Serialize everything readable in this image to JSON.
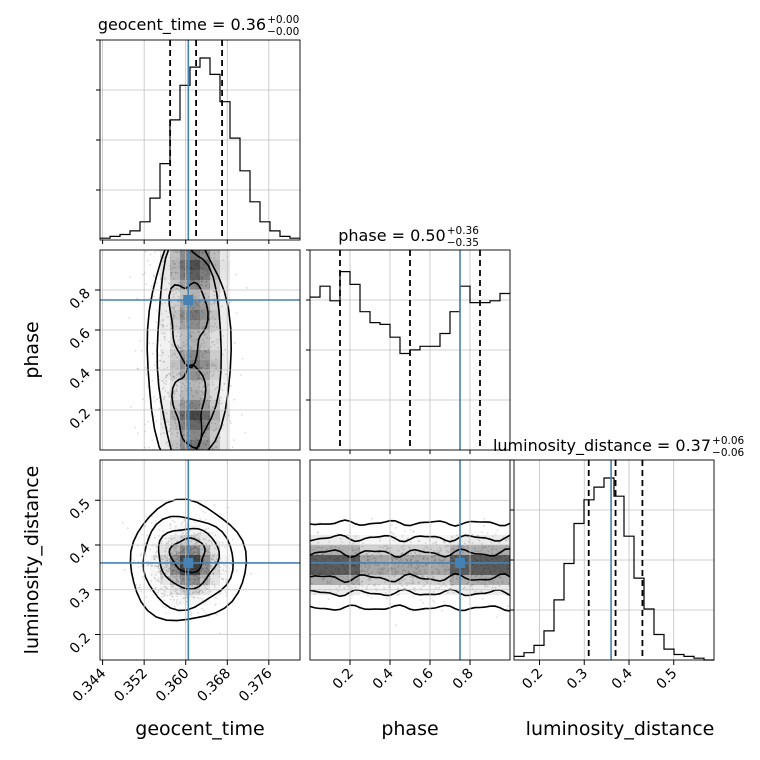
{
  "chart_data": {
    "type": "corner",
    "parameters": [
      "geocent_time",
      "phase",
      "luminosity_distance"
    ],
    "truth": {
      "geocent_time": 0.3605,
      "phase": 0.75,
      "luminosity_distance": 0.36
    },
    "truth_color": "#4682b4",
    "ranges": {
      "geocent_time": [
        0.3435,
        0.382
      ],
      "phase": [
        0.0,
        1.0
      ],
      "luminosity_distance": [
        0.143,
        0.59
      ]
    },
    "ticks": {
      "geocent_time": [
        {
          "v": 0.344,
          "label": "0.344"
        },
        {
          "v": 0.352,
          "label": "0.352"
        },
        {
          "v": 0.36,
          "label": "0.360"
        },
        {
          "v": 0.368,
          "label": "0.368"
        },
        {
          "v": 0.376,
          "label": "0.376"
        }
      ],
      "phase": [
        {
          "v": 0.2,
          "label": "0.2"
        },
        {
          "v": 0.4,
          "label": "0.4"
        },
        {
          "v": 0.6,
          "label": "0.6"
        },
        {
          "v": 0.8,
          "label": "0.8"
        }
      ],
      "luminosity_distance": [
        {
          "v": 0.2,
          "label": "0.2"
        },
        {
          "v": 0.3,
          "label": "0.3"
        },
        {
          "v": 0.4,
          "label": "0.4"
        },
        {
          "v": 0.5,
          "label": "0.5"
        }
      ]
    },
    "titles": {
      "geocent_time": {
        "main": "geocent_time = 0.36",
        "sup": "+0.00",
        "sub": "−0.00"
      },
      "phase": {
        "main": "phase = 0.50",
        "sup": "+0.36",
        "sub": "−0.35"
      },
      "luminosity_distance": {
        "main": "luminosity_distance = 0.37",
        "sup": "+0.06",
        "sub": "−0.06"
      }
    },
    "quantiles": {
      "geocent_time": [
        0.357,
        0.362,
        0.367
      ],
      "phase": [
        0.15,
        0.5,
        0.85
      ],
      "luminosity_distance": [
        0.31,
        0.37,
        0.43
      ]
    },
    "histograms": {
      "geocent_time": {
        "edges_range": [
          0.3435,
          0.382
        ],
        "counts": [
          0.01,
          0.02,
          0.03,
          0.05,
          0.1,
          0.23,
          0.42,
          0.66,
          0.85,
          0.95,
          1.0,
          0.91,
          0.76,
          0.56,
          0.38,
          0.21,
          0.1,
          0.05,
          0.02,
          0.01
        ]
      },
      "phase": {
        "edges_range": [
          0.0,
          1.0
        ],
        "counts": [
          0.84,
          0.9,
          0.82,
          0.98,
          0.91,
          0.76,
          0.7,
          0.69,
          0.62,
          0.53,
          0.55,
          0.57,
          0.57,
          0.64,
          0.76,
          0.9,
          0.81,
          0.81,
          0.82,
          0.86
        ]
      },
      "luminosity_distance": {
        "edges_range": [
          0.143,
          0.59
        ],
        "counts": [
          0.02,
          0.04,
          0.08,
          0.16,
          0.33,
          0.53,
          0.75,
          0.88,
          0.95,
          1.0,
          0.9,
          0.68,
          0.45,
          0.28,
          0.14,
          0.06,
          0.03,
          0.02,
          0.01,
          0.0
        ]
      }
    },
    "grid": true,
    "contour_levels": 4
  }
}
